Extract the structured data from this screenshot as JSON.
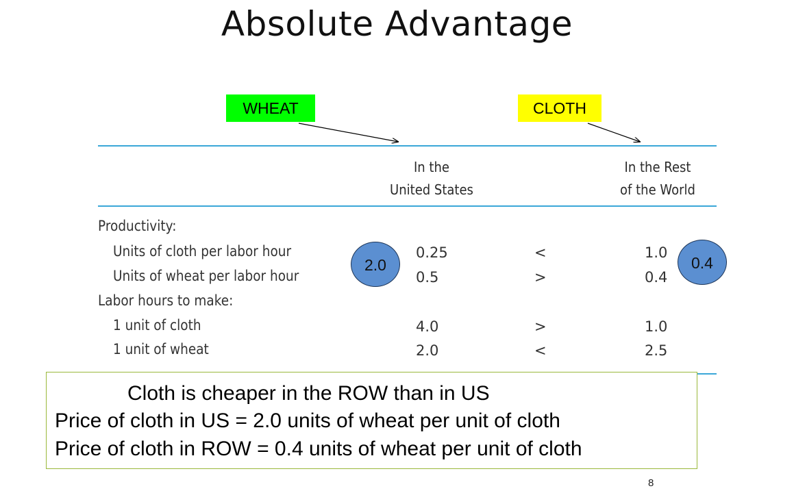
{
  "title": "Absolute Advantage",
  "tags": {
    "wheat": "WHEAT",
    "cloth": "CLOTH"
  },
  "table": {
    "col_us": [
      "In the",
      "United States"
    ],
    "col_row": [
      "In the Rest",
      "of the World"
    ],
    "rows": [
      {
        "label": "Productivity:"
      },
      {
        "label": "Units of cloth per labor hour",
        "us": "0.25",
        "sign": "<",
        "row": "1.0"
      },
      {
        "label": "Units of wheat per labor hour",
        "us": "0.5",
        "sign": ">",
        "row": "0.4"
      },
      {
        "label": "Labor hours to make:"
      },
      {
        "label": "1 unit of cloth",
        "us": "4.0",
        "sign": ">",
        "row": "1.0"
      },
      {
        "label": "1 unit of wheat",
        "us": "2.0",
        "sign": "<",
        "row": "2.5"
      }
    ]
  },
  "ovals": {
    "us": "2.0",
    "row": "0.4"
  },
  "note": [
    "Cloth is cheaper in the ROW than in US",
    "Price of cloth in US = 2.0 units of wheat per unit of cloth",
    "Price of cloth in ROW = 0.4 units of wheat per unit of cloth"
  ],
  "page_number": "8",
  "colors": {
    "wheat_tag": "#00ff00",
    "cloth_tag": "#ffff00",
    "rule": "#3aa7d8",
    "oval": "#5b8fd1",
    "note_border": "#9ab83a"
  }
}
